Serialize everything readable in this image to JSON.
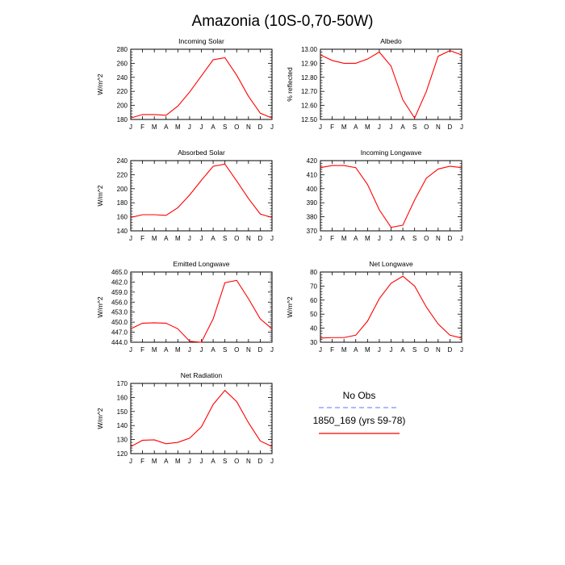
{
  "title": "Amazonia (10S-0,70-50W)",
  "months": [
    "J",
    "F",
    "M",
    "A",
    "M",
    "J",
    "J",
    "A",
    "S",
    "O",
    "N",
    "D",
    "J"
  ],
  "legend": {
    "obs_label": "No Obs",
    "obs_color": "#8888ff",
    "model_label": "1850_169 (yrs 59-78)",
    "model_color": "#ff0000"
  },
  "chart_data": [
    {
      "type": "line",
      "title": "Incoming Solar",
      "ylabel": "W/m^2",
      "ylim": [
        180,
        280
      ],
      "yticks": [
        180,
        200,
        220,
        240,
        260,
        280
      ],
      "yticklabels": [
        "180",
        "200",
        "220",
        "240",
        "260",
        "280"
      ],
      "series": [
        {
          "name": "1850_169 (yrs 59-78)",
          "values": [
            182,
            187,
            187,
            186,
            199,
            219,
            242,
            265,
            268,
            243,
            213,
            189,
            182
          ]
        }
      ]
    },
    {
      "type": "line",
      "title": "Albedo",
      "ylabel": "% reflected",
      "ylim": [
        12.5,
        13.0
      ],
      "yticks": [
        12.5,
        12.6,
        12.7,
        12.8,
        12.9,
        13.0
      ],
      "yticklabels": [
        "12.50",
        "12.60",
        "12.70",
        "12.80",
        "12.90",
        "13.00"
      ],
      "series": [
        {
          "name": "1850_169 (yrs 59-78)",
          "values": [
            12.96,
            12.92,
            12.9,
            12.9,
            12.93,
            12.98,
            12.88,
            12.64,
            12.51,
            12.7,
            12.95,
            12.99,
            12.96
          ]
        }
      ]
    },
    {
      "type": "line",
      "title": "Absorbed Solar",
      "ylabel": "W/m^2",
      "ylim": [
        140,
        240
      ],
      "yticks": [
        140,
        160,
        180,
        200,
        220,
        240
      ],
      "yticklabels": [
        "140",
        "160",
        "180",
        "200",
        "220",
        "240"
      ],
      "series": [
        {
          "name": "1850_169 (yrs 59-78)",
          "values": [
            159,
            163,
            163,
            162,
            173,
            191,
            212,
            232,
            235,
            211,
            186,
            164,
            159
          ]
        }
      ]
    },
    {
      "type": "line",
      "title": "Incoming Longwave",
      "ylabel": "",
      "ylim": [
        370,
        420
      ],
      "yticks": [
        370,
        380,
        390,
        400,
        410,
        420
      ],
      "yticklabels": [
        "370",
        "380",
        "390",
        "400",
        "410",
        "420"
      ],
      "series": [
        {
          "name": "1850_169 (yrs 59-78)",
          "values": [
            415,
            416.5,
            416.5,
            415,
            403,
            385,
            372.5,
            374,
            392,
            407.5,
            414,
            416,
            415
          ]
        }
      ]
    },
    {
      "type": "line",
      "title": "Emitted Longwave",
      "ylabel": "W/m^2",
      "ylim": [
        444,
        465
      ],
      "yticks": [
        444,
        447,
        450,
        453,
        456,
        459,
        462,
        465
      ],
      "yticklabels": [
        "444.0",
        "447.0",
        "450.0",
        "453.0",
        "456.0",
        "459.0",
        "462.0",
        "465.0"
      ],
      "series": [
        {
          "name": "1850_169 (yrs 59-78)",
          "values": [
            448,
            449.7,
            449.8,
            449.7,
            448,
            444.3,
            444,
            451,
            461.8,
            462.5,
            457,
            451,
            448
          ]
        }
      ]
    },
    {
      "type": "line",
      "title": "Net Longwave",
      "ylabel": "W/m^2",
      "ylim": [
        30,
        80
      ],
      "yticks": [
        30,
        40,
        50,
        60,
        70,
        80
      ],
      "yticklabels": [
        "30",
        "40",
        "50",
        "60",
        "70",
        "80"
      ],
      "series": [
        {
          "name": "1850_169 (yrs 59-78)",
          "values": [
            33,
            33.3,
            33.3,
            35,
            45,
            61,
            72,
            77,
            70,
            55,
            43,
            35,
            33
          ]
        }
      ]
    },
    {
      "type": "line",
      "title": "Net Radiation",
      "ylabel": "W/m^2",
      "ylim": [
        120,
        170
      ],
      "yticks": [
        120,
        130,
        140,
        150,
        160,
        170
      ],
      "yticklabels": [
        "120",
        "130",
        "140",
        "150",
        "160",
        "170"
      ],
      "series": [
        {
          "name": "1850_169 (yrs 59-78)",
          "values": [
            125,
            129.5,
            129.8,
            127,
            128,
            131,
            139,
            155,
            165,
            157,
            142,
            129,
            125
          ]
        }
      ]
    }
  ]
}
